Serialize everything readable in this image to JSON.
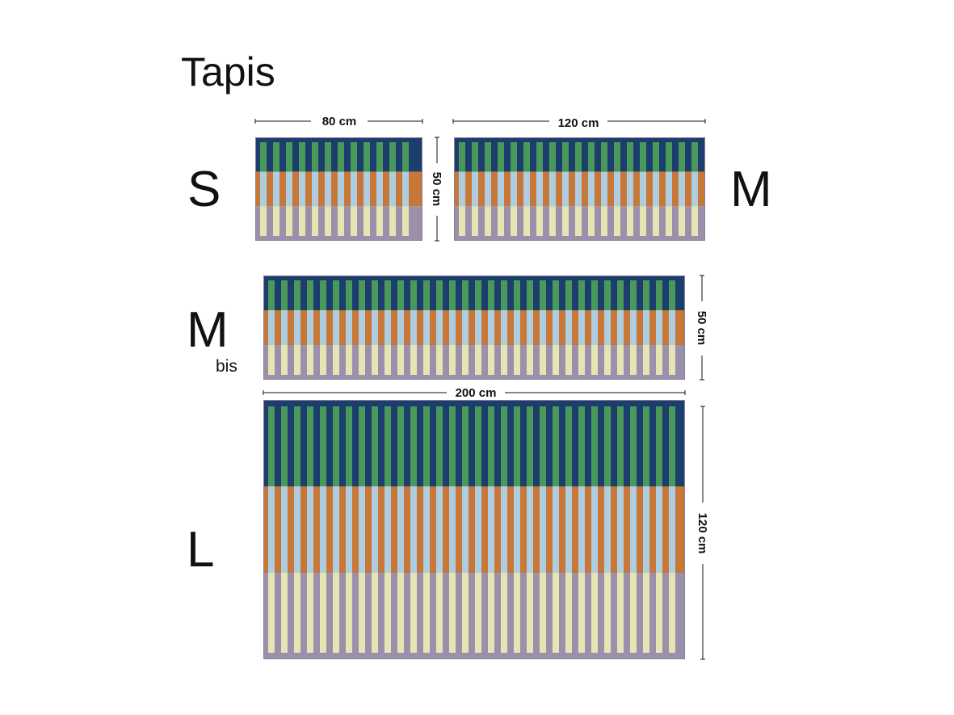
{
  "title": "Tapis",
  "sizes": [
    {
      "label": "S",
      "width": "80 cm",
      "height": "50 cm"
    },
    {
      "label": "M",
      "width": "120 cm",
      "height": "50 cm"
    },
    {
      "label": "M",
      "sublabel": "bis",
      "width": "200 cm",
      "height": "50 cm"
    },
    {
      "label": "L",
      "width": "200 cm",
      "height": "120 cm"
    }
  ],
  "colors": {
    "navy": "#1b3e6c",
    "green": "#4b995a",
    "orange": "#c77838",
    "light_blue": "#aecde0",
    "purple": "#9b8fab",
    "pale_yellow": "#e5e5b3"
  }
}
